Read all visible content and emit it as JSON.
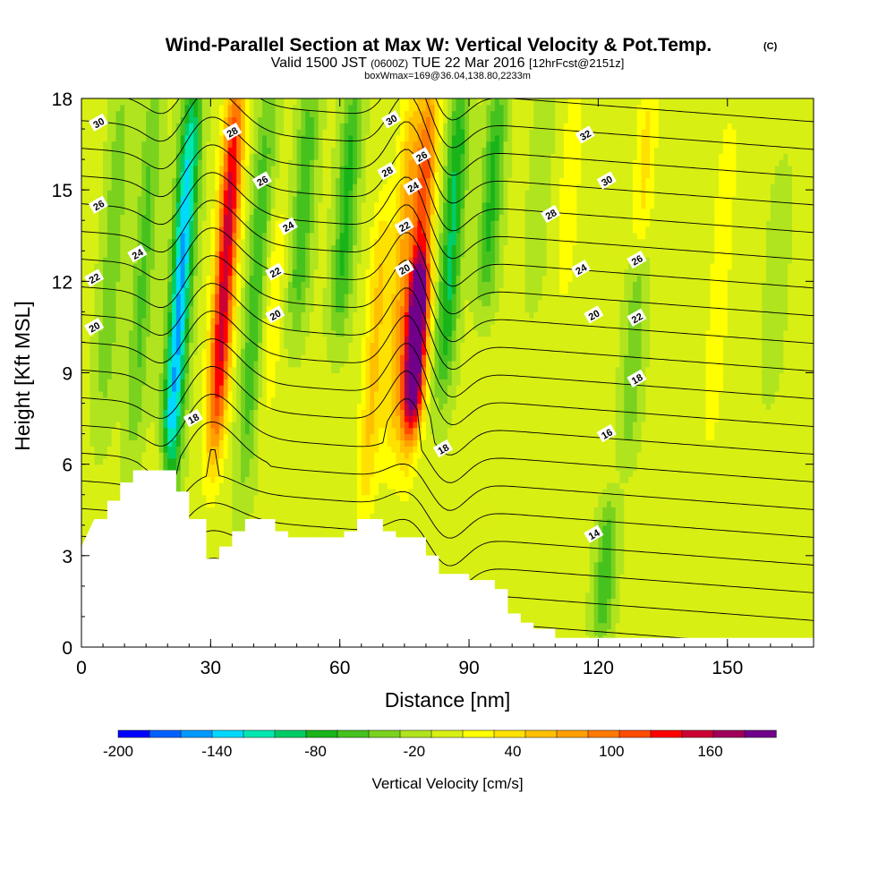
{
  "chart_data": {
    "type": "heatmap",
    "title": {
      "main": "Wind-Parallel Section at Max W: Vertical Velocity & Pot.Temp.",
      "main_tag": "(C)",
      "valid_prefix": "Valid 1500 JST",
      "valid_utc": "(0600Z)",
      "valid_date": "TUE 22 Mar 2016",
      "forecast": "[12hrFcst@2151z]",
      "boxinfo": "boxWmax=169@36.04,138.80,2233m"
    },
    "xlabel": "Distance [nm]",
    "ylabel": "Height [Kft MSL]",
    "xlim": [
      0,
      170
    ],
    "ylim": [
      0,
      18
    ],
    "x_ticks": [
      0,
      30,
      60,
      90,
      120,
      150
    ],
    "y_ticks": [
      0,
      3,
      6,
      9,
      12,
      15,
      18
    ],
    "colorbar": {
      "label": "Vertical Velocity [cm/s]",
      "min": -200,
      "max": 200,
      "step": 20,
      "tick_labels": [
        "-200",
        "-140",
        "-80",
        "-20",
        "40",
        "100",
        "160"
      ],
      "tick_values": [
        -200,
        -140,
        -80,
        -20,
        40,
        100,
        160
      ],
      "colors": [
        "#0000ff",
        "#0060ff",
        "#0099ff",
        "#00d9ff",
        "#00e8b0",
        "#00cc66",
        "#19b419",
        "#46c21e",
        "#7ad21e",
        "#b0e41e",
        "#d8ef14",
        "#ffff00",
        "#ffe100",
        "#ffc000",
        "#ffa000",
        "#ff7a00",
        "#ff4c00",
        "#ff0000",
        "#cc0033",
        "#a0005a",
        "#70008a"
      ]
    },
    "w_features": [
      {
        "x": 5,
        "z0": 8,
        "z1": 18,
        "w": -40
      },
      {
        "x": 12,
        "z0": 7,
        "z1": 18,
        "w": -50
      },
      {
        "x": 20,
        "z0": 5,
        "z1": 18,
        "w": -150
      },
      {
        "x": 31,
        "z0": 7,
        "z1": 18,
        "w": 170
      },
      {
        "x": 38,
        "z0": 6,
        "z1": 18,
        "w": -60
      },
      {
        "x": 43,
        "z0": 8,
        "z1": 14,
        "w": 30
      },
      {
        "x": 50,
        "z0": 11,
        "z1": 18,
        "w": -60
      },
      {
        "x": 60,
        "z0": 11,
        "z1": 18,
        "w": -70
      },
      {
        "x": 66,
        "z0": 5,
        "z1": 14,
        "w": 60
      },
      {
        "x": 72,
        "z0": 7,
        "z1": 18,
        "w": 70
      },
      {
        "x": 76,
        "z0": 7,
        "z1": 18,
        "w": 130
      },
      {
        "x": 77,
        "z0": 8,
        "z1": 12,
        "w": 150
      },
      {
        "x": 84,
        "z0": 9,
        "z1": 18,
        "w": -90
      },
      {
        "x": 94,
        "z0": 12,
        "z1": 18,
        "w": -70
      },
      {
        "x": 105,
        "z0": 12,
        "z1": 18,
        "w": -20
      },
      {
        "x": 112,
        "z0": 12,
        "z1": 18,
        "w": 30
      },
      {
        "x": 121,
        "z0": 1,
        "z1": 4,
        "w": -60
      },
      {
        "x": 127,
        "z0": 7,
        "z1": 12,
        "w": -40
      },
      {
        "x": 130,
        "z0": 14,
        "z1": 18,
        "w": 40
      },
      {
        "x": 146,
        "z0": 7,
        "z1": 17,
        "w": 30
      },
      {
        "x": 160,
        "z0": 9,
        "z1": 15,
        "w": -20
      },
      {
        "x": 18,
        "z0": 4,
        "z1": 6,
        "w": 50
      }
    ],
    "terrain": [
      [
        0,
        3.3
      ],
      [
        3,
        4.2
      ],
      [
        6,
        4.2
      ],
      [
        6,
        4.8
      ],
      [
        9,
        4.8
      ],
      [
        9,
        5.4
      ],
      [
        12,
        5.4
      ],
      [
        12,
        5.8
      ],
      [
        22,
        5.8
      ],
      [
        22,
        5.1
      ],
      [
        25,
        5.1
      ],
      [
        25,
        4.2
      ],
      [
        29,
        4.2
      ],
      [
        29,
        2.9
      ],
      [
        32,
        2.9
      ],
      [
        32,
        3.3
      ],
      [
        35,
        3.3
      ],
      [
        35,
        3.8
      ],
      [
        38,
        3.8
      ],
      [
        38,
        4.2
      ],
      [
        45,
        4.2
      ],
      [
        45,
        3.8
      ],
      [
        48,
        3.8
      ],
      [
        48,
        3.6
      ],
      [
        61,
        3.6
      ],
      [
        61,
        3.8
      ],
      [
        64,
        3.8
      ],
      [
        64,
        4.2
      ],
      [
        70,
        4.2
      ],
      [
        70,
        3.8
      ],
      [
        73,
        3.8
      ],
      [
        73,
        3.6
      ],
      [
        80,
        3.6
      ],
      [
        80,
        3.0
      ],
      [
        83,
        3.0
      ],
      [
        83,
        2.4
      ],
      [
        90,
        2.4
      ],
      [
        90,
        2.2
      ],
      [
        96,
        2.2
      ],
      [
        96,
        1.9
      ],
      [
        99,
        1.9
      ],
      [
        99,
        1.1
      ],
      [
        102,
        1.1
      ],
      [
        102,
        0.8
      ],
      [
        105,
        0.8
      ],
      [
        105,
        0.6
      ],
      [
        110,
        0.6
      ],
      [
        110,
        0.3
      ],
      [
        170,
        0.3
      ]
    ],
    "theta_contours": {
      "levels": [
        12,
        13,
        14,
        15,
        16,
        17,
        18,
        19,
        20,
        21,
        22,
        23,
        24,
        25,
        26,
        27,
        28,
        29,
        30,
        31,
        32,
        33
      ],
      "labels": [
        {
          "text": "30",
          "x": 4,
          "y": 17.2
        },
        {
          "text": "26",
          "x": 4,
          "y": 14.5
        },
        {
          "text": "24",
          "x": 13,
          "y": 12.9
        },
        {
          "text": "22",
          "x": 3,
          "y": 12.1
        },
        {
          "text": "20",
          "x": 3,
          "y": 10.5
        },
        {
          "text": "28",
          "x": 35,
          "y": 16.9
        },
        {
          "text": "26",
          "x": 42,
          "y": 15.3
        },
        {
          "text": "24",
          "x": 48,
          "y": 13.8
        },
        {
          "text": "22",
          "x": 45,
          "y": 12.3
        },
        {
          "text": "20",
          "x": 45,
          "y": 10.9
        },
        {
          "text": "18",
          "x": 26,
          "y": 7.5
        },
        {
          "text": "30",
          "x": 72,
          "y": 17.3
        },
        {
          "text": "28",
          "x": 71,
          "y": 15.6
        },
        {
          "text": "26",
          "x": 79,
          "y": 16.1
        },
        {
          "text": "24",
          "x": 77,
          "y": 15.1
        },
        {
          "text": "22",
          "x": 75,
          "y": 13.8
        },
        {
          "text": "20",
          "x": 75,
          "y": 12.4
        },
        {
          "text": "18",
          "x": 84,
          "y": 6.5
        },
        {
          "text": "32",
          "x": 117,
          "y": 16.8
        },
        {
          "text": "30",
          "x": 122,
          "y": 15.3
        },
        {
          "text": "28",
          "x": 109,
          "y": 14.2
        },
        {
          "text": "26",
          "x": 129,
          "y": 12.7
        },
        {
          "text": "24",
          "x": 116,
          "y": 12.4
        },
        {
          "text": "22",
          "x": 129,
          "y": 10.8
        },
        {
          "text": "20",
          "x": 119,
          "y": 10.9
        },
        {
          "text": "18",
          "x": 129,
          "y": 8.8
        },
        {
          "text": "16",
          "x": 122,
          "y": 7.0
        },
        {
          "text": "14",
          "x": 119,
          "y": 3.7
        }
      ]
    }
  }
}
